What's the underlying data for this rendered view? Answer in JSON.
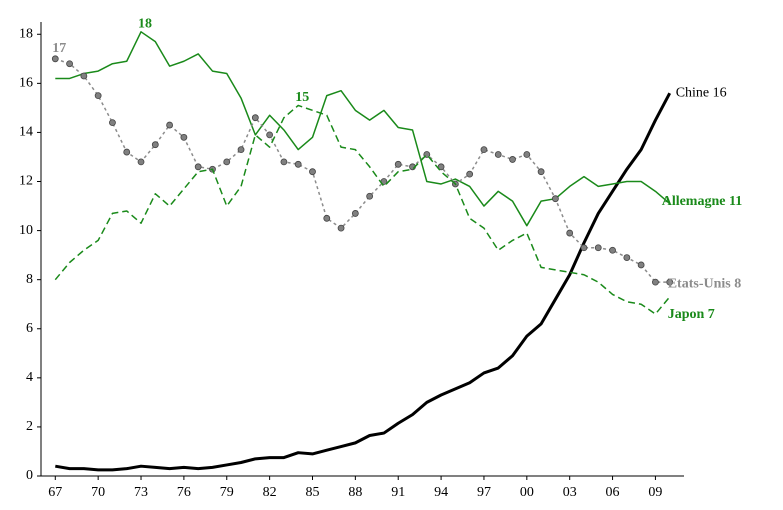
{
  "chart_data": {
    "type": "line",
    "x": [
      1967,
      1968,
      1969,
      1970,
      1971,
      1972,
      1973,
      1974,
      1975,
      1976,
      1977,
      1978,
      1979,
      1980,
      1981,
      1982,
      1983,
      1984,
      1985,
      1986,
      1987,
      1988,
      1989,
      1990,
      1991,
      1992,
      1993,
      1994,
      1995,
      1996,
      1997,
      1998,
      1999,
      2000,
      2001,
      2002,
      2003,
      2004,
      2005,
      2006,
      2007,
      2008,
      2009,
      2010
    ],
    "xlim": [
      1966,
      2011
    ],
    "xticks": [
      {
        "value": 1967,
        "label": "67"
      },
      {
        "value": 1970,
        "label": "70"
      },
      {
        "value": 1973,
        "label": "73"
      },
      {
        "value": 1976,
        "label": "76"
      },
      {
        "value": 1979,
        "label": "79"
      },
      {
        "value": 1982,
        "label": "82"
      },
      {
        "value": 1985,
        "label": "85"
      },
      {
        "value": 1988,
        "label": "88"
      },
      {
        "value": 1991,
        "label": "91"
      },
      {
        "value": 1994,
        "label": "94"
      },
      {
        "value": 1997,
        "label": "97"
      },
      {
        "value": 2000,
        "label": "00"
      },
      {
        "value": 2003,
        "label": "03"
      },
      {
        "value": 2006,
        "label": "06"
      },
      {
        "value": 2009,
        "label": "09"
      }
    ],
    "ylim": [
      0,
      18.5
    ],
    "yticks": [
      0,
      2,
      4,
      6,
      8,
      10,
      12,
      14,
      16,
      18
    ],
    "grid": false,
    "series": [
      {
        "name": "Chine 16",
        "color": "#000000",
        "style": "solid",
        "width": 3,
        "values": [
          0.4,
          0.3,
          0.3,
          0.25,
          0.25,
          0.3,
          0.4,
          0.35,
          0.3,
          0.35,
          0.3,
          0.35,
          0.45,
          0.55,
          0.7,
          0.75,
          0.75,
          0.95,
          0.9,
          1.05,
          1.2,
          1.35,
          1.65,
          1.75,
          2.15,
          2.5,
          3.0,
          3.3,
          3.55,
          3.8,
          4.2,
          4.4,
          4.9,
          5.7,
          6.2,
          7.2,
          8.2,
          9.5,
          10.7,
          11.6,
          12.5,
          13.3,
          14.5,
          15.6
        ]
      },
      {
        "name": "Allemagne 11",
        "color": "#1a8a1a",
        "style": "solid",
        "width": 1.5,
        "values": [
          16.2,
          16.2,
          16.4,
          16.5,
          16.8,
          16.9,
          18.1,
          17.7,
          16.7,
          16.9,
          17.2,
          16.5,
          16.4,
          15.4,
          13.9,
          14.7,
          14.1,
          13.3,
          13.8,
          15.5,
          15.7,
          14.9,
          14.5,
          14.9,
          14.2,
          14.1,
          12.0,
          11.9,
          12.1,
          11.8,
          11.0,
          11.6,
          11.2,
          10.2,
          11.2,
          11.3,
          11.8,
          12.2,
          11.8,
          11.9,
          12.0,
          12.0,
          11.6,
          11.1
        ]
      },
      {
        "name": "Etats-Unis 8",
        "color": "#8c8c8c",
        "style": "dotted",
        "width": 1.5,
        "values": [
          17.0,
          16.8,
          16.3,
          15.5,
          14.4,
          13.2,
          12.8,
          13.5,
          14.3,
          13.8,
          12.6,
          12.5,
          12.8,
          13.3,
          14.6,
          13.9,
          12.8,
          12.7,
          12.4,
          10.5,
          10.1,
          10.7,
          11.4,
          12.0,
          12.7,
          12.6,
          13.1,
          12.6,
          11.9,
          12.3,
          13.3,
          13.1,
          12.9,
          13.1,
          12.4,
          11.3,
          9.9,
          9.3,
          9.3,
          9.2,
          8.9,
          8.6,
          7.9,
          7.9
        ]
      },
      {
        "name": "Japon 7",
        "color": "#1a8a1a",
        "style": "dashed",
        "width": 1.5,
        "values": [
          8.0,
          8.7,
          9.2,
          9.6,
          10.7,
          10.8,
          10.3,
          11.5,
          11.0,
          11.7,
          12.4,
          12.5,
          11.0,
          11.8,
          13.9,
          13.4,
          14.6,
          15.1,
          14.9,
          14.7,
          13.4,
          13.3,
          12.6,
          11.8,
          12.4,
          12.5,
          13.1,
          12.4,
          11.9,
          10.5,
          10.1,
          9.2,
          9.6,
          9.9,
          8.5,
          8.4,
          8.3,
          8.2,
          7.9,
          7.4,
          7.1,
          7.0,
          6.6,
          7.3
        ]
      }
    ],
    "annotations": [
      {
        "label": "17",
        "x": 1967,
        "y": 17,
        "color": "#8c8c8c"
      },
      {
        "label": "18",
        "x": 1973,
        "y": 18,
        "color": "#1a8a1a"
      },
      {
        "label": "15",
        "x": 1984,
        "y": 15,
        "color": "#1a8a1a"
      }
    ]
  }
}
